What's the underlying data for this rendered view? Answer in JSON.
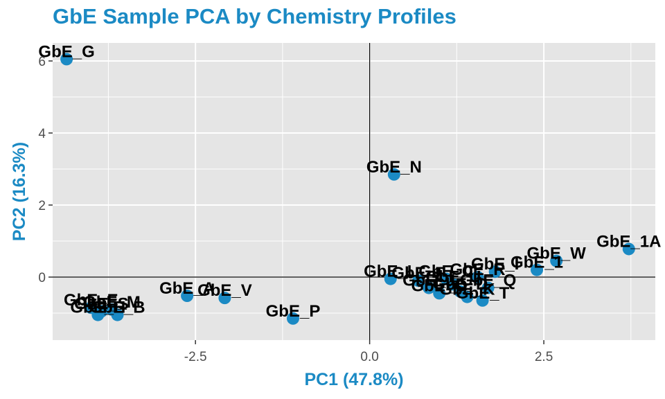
{
  "chart_data": {
    "type": "scatter",
    "title": "GbE Sample PCA by Chemistry Profiles",
    "xlabel": "PC1 (47.8%)",
    "ylabel": "PC2 (16.3%)",
    "xlim": [
      -4.55,
      4.1
    ],
    "ylim": [
      -1.75,
      6.5
    ],
    "x_ticks": [
      -2.5,
      0.0,
      2.5
    ],
    "x_tick_labels": [
      "-2.5",
      "0.0",
      "2.5"
    ],
    "y_ticks": [
      0,
      2,
      4,
      6
    ],
    "y_tick_labels": [
      "0",
      "2",
      "4",
      "6"
    ],
    "grid": true,
    "zero_lines": true,
    "colors": {
      "point": "#1b8ac4",
      "panel": "#e5e5e5",
      "grid": "#ffffff",
      "accent": "#1b8ac4"
    },
    "points": [
      {
        "label": "GbE_G",
        "x": -4.35,
        "y": 6.05
      },
      {
        "label": "GbE_N",
        "x": 0.35,
        "y": 2.85
      },
      {
        "label": "GbE_1A",
        "x": 3.72,
        "y": 0.78
      },
      {
        "label": "GbE_W",
        "x": 2.68,
        "y": 0.45
      },
      {
        "label": "GbE_1",
        "x": 2.4,
        "y": 0.2
      },
      {
        "label": "GbE_T",
        "x": 1.62,
        "y": -0.65
      },
      {
        "label": "GbE_Q",
        "x": 1.7,
        "y": -0.3
      },
      {
        "label": "GbE_L",
        "x": 0.3,
        "y": -0.05
      },
      {
        "label": "GbE_I",
        "x": 1.8,
        "y": 0.15
      },
      {
        "label": "GbE_C",
        "x": 1.1,
        "y": -0.05
      },
      {
        "label": "GbE_A",
        "x": -2.62,
        "y": -0.52
      },
      {
        "label": "GbE_V",
        "x": -2.08,
        "y": -0.58
      },
      {
        "label": "GbE_P",
        "x": -1.1,
        "y": -1.15
      },
      {
        "label": "GbE_H",
        "x": -3.9,
        "y": -1.05
      },
      {
        "label": "GbE_B",
        "x": -3.62,
        "y": -1.05
      },
      {
        "label": "GbE_M",
        "x": -3.7,
        "y": -0.9
      },
      {
        "label": "GbE_E",
        "x": -4.0,
        "y": -0.85
      },
      {
        "label": "GbE_S",
        "x": -3.85,
        "y": -0.95
      },
      {
        "label": "GbE_D",
        "x": 1.3,
        "y": -0.4
      },
      {
        "label": "GbE_F",
        "x": 0.7,
        "y": -0.1
      },
      {
        "label": "GbE_J",
        "x": 0.85,
        "y": -0.3
      },
      {
        "label": "GbE_K",
        "x": 1.4,
        "y": -0.55
      },
      {
        "label": "GbE_O",
        "x": 1.0,
        "y": -0.45
      },
      {
        "label": "GbE_R",
        "x": 1.55,
        "y": 0.0
      },
      {
        "label": "GbE_U",
        "x": 1.2,
        "y": -0.2
      }
    ]
  }
}
